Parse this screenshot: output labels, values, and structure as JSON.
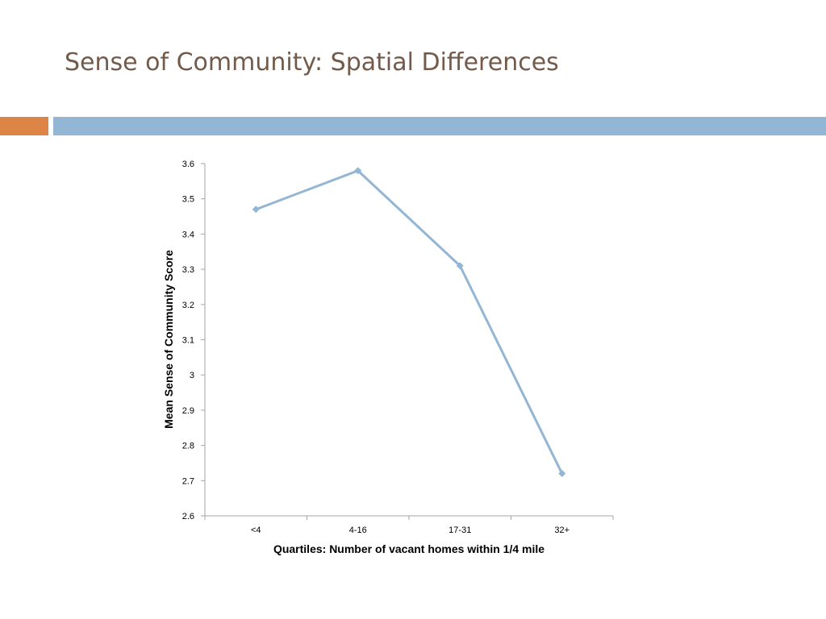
{
  "slide": {
    "title": "Sense of Community:  Spatial Differences"
  },
  "colors": {
    "title": "#735a4a",
    "accent_orange": "#dd8547",
    "accent_blue": "#93b6d4",
    "series_line": "#93b6d4"
  },
  "chart_data": {
    "type": "line",
    "title": "",
    "xlabel": "Quartiles:  Number of vacant homes within 1/4 mile",
    "ylabel": "Mean Sense of Community Score",
    "categories": [
      "<4",
      "4-16",
      "17-31",
      "32+"
    ],
    "series": [
      {
        "values": [
          3.47,
          3.58,
          3.31,
          2.72
        ],
        "marker": "diamond"
      }
    ],
    "ylim": [
      2.6,
      3.6
    ],
    "yticks": [
      "3.6",
      "3.5",
      "3.4",
      "3.3",
      "3.2",
      "3.1",
      "3",
      "2.9",
      "2.8",
      "2.7",
      "2.6"
    ],
    "grid": false,
    "legend": "none"
  }
}
